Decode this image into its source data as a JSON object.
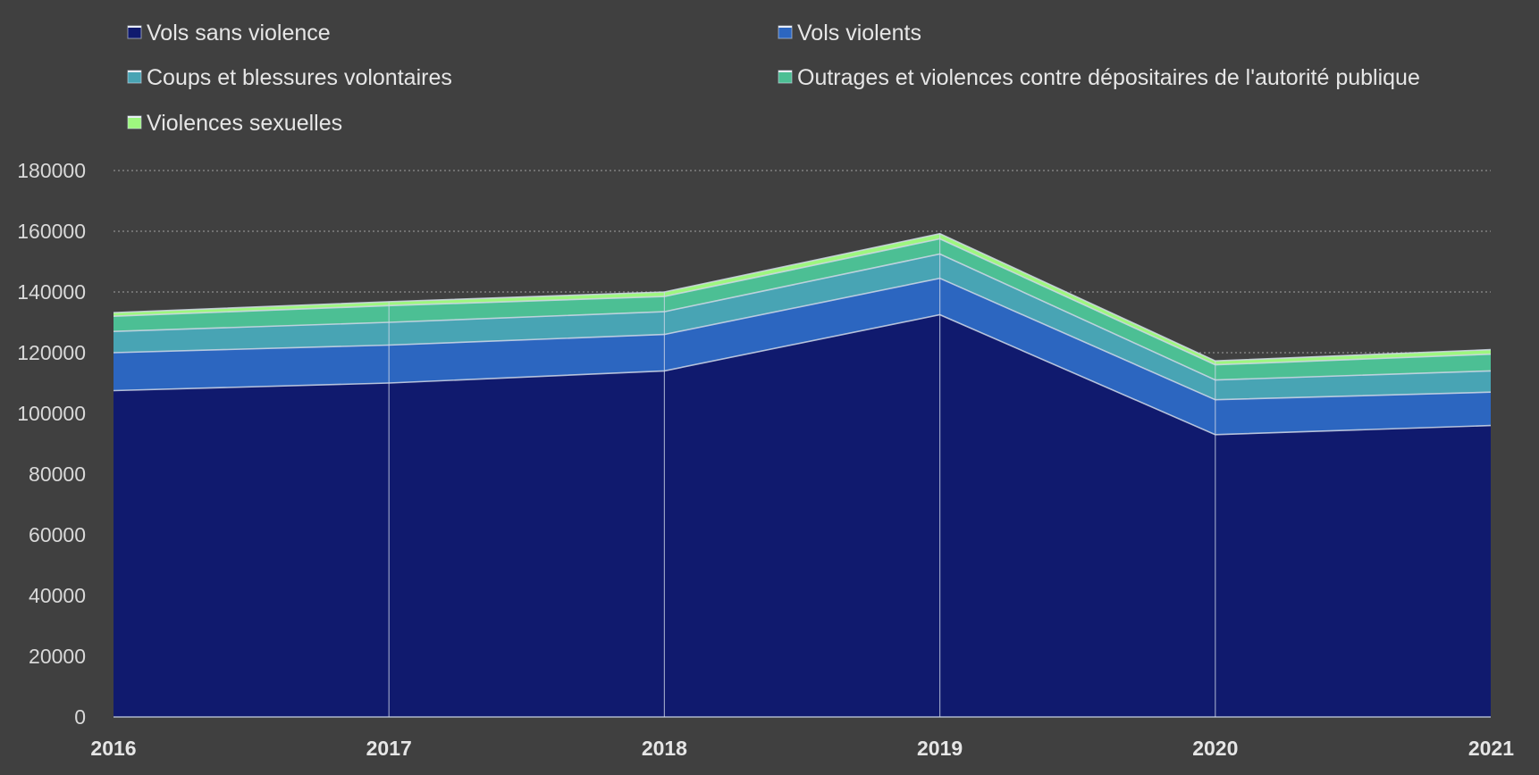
{
  "chart_data": {
    "type": "area",
    "stacked": true,
    "categories": [
      "2016",
      "2017",
      "2018",
      "2019",
      "2020",
      "2021"
    ],
    "series": [
      {
        "name": "Vols sans violence",
        "color": "#101a6e",
        "values": [
          107500,
          110000,
          114000,
          132500,
          93000,
          96000
        ]
      },
      {
        "name": "Vols violents",
        "color": "#2c66c0",
        "values": [
          12500,
          12500,
          12000,
          12000,
          11500,
          11000
        ]
      },
      {
        "name": "Coups et blessures volontaires",
        "color": "#48a4b4",
        "values": [
          7000,
          7500,
          7500,
          8000,
          6500,
          7000
        ]
      },
      {
        "name": "Outrages et violences contre dépositaires de l'autorité publique",
        "color": "#4cbf94",
        "values": [
          5000,
          5500,
          5000,
          5000,
          5000,
          5500
        ]
      },
      {
        "name": "Violences sexuelles",
        "color": "#9ef77f",
        "values": [
          1200,
          1300,
          1500,
          1700,
          1300,
          1500
        ]
      }
    ],
    "ylim": [
      0,
      180000
    ],
    "yticks": [
      "0",
      "20000",
      "40000",
      "60000",
      "80000",
      "100000",
      "120000",
      "140000",
      "160000",
      "180000"
    ],
    "grid": true,
    "legend_position": "top",
    "xlabel": "",
    "ylabel": "",
    "title": ""
  },
  "colors": {
    "background": "#404040",
    "gridline": "#8c8c8c",
    "separator": "#d0d8e8",
    "text": "#e6e6e6"
  }
}
